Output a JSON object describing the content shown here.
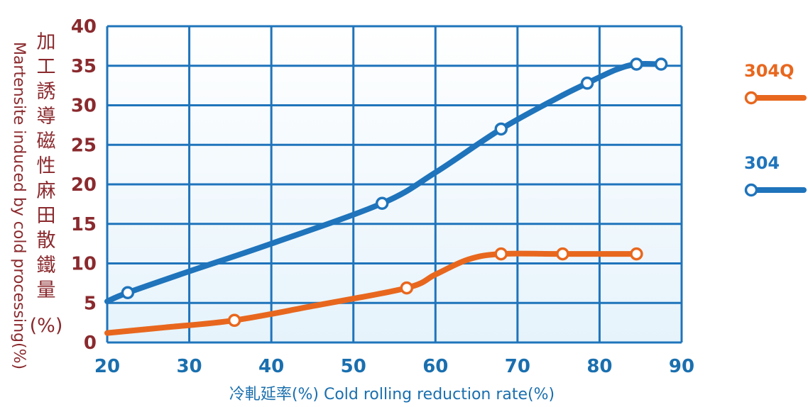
{
  "chart_data": {
    "type": "line",
    "xlabel": "冷軋延率(%) Cold rolling reduction rate(%)",
    "ylabel_cn": "加工誘導磁性麻田散鐵量",
    "ylabel_unit": "(%)",
    "ylabel_en": "Martensite induced by cold processing(%)",
    "xlim": [
      20,
      90
    ],
    "ylim": [
      0,
      40
    ],
    "xticks": [
      "20",
      "30",
      "40",
      "50",
      "60",
      "70",
      "80",
      "90"
    ],
    "yticks": [
      "0",
      "5",
      "10",
      "15",
      "20",
      "25",
      "30",
      "35",
      "40"
    ],
    "grid": true,
    "legend_position": "right",
    "series": [
      {
        "name": "304Q",
        "color": "#e8671e",
        "line": [
          [
            20,
            1.2
          ],
          [
            27,
            1.9
          ],
          [
            35.5,
            2.8
          ],
          [
            45,
            4.6
          ],
          [
            56.5,
            6.9
          ],
          [
            60,
            8.6
          ],
          [
            64,
            10.5
          ],
          [
            68,
            11.2
          ],
          [
            75.5,
            11.2
          ],
          [
            84.5,
            11.2
          ]
        ],
        "markers": [
          [
            35.5,
            2.8
          ],
          [
            56.5,
            6.9
          ],
          [
            68,
            11.2
          ],
          [
            75.5,
            11.2
          ],
          [
            84.5,
            11.2
          ]
        ]
      },
      {
        "name": "304",
        "color": "#1f74bb",
        "line": [
          [
            20,
            5.2
          ],
          [
            22.5,
            6.3
          ],
          [
            30,
            9.0
          ],
          [
            40,
            12.5
          ],
          [
            53.5,
            17.6
          ],
          [
            60,
            21.5
          ],
          [
            68,
            27.0
          ],
          [
            75,
            31.0
          ],
          [
            78.5,
            32.8
          ],
          [
            82,
            34.5
          ],
          [
            84.5,
            35.2
          ],
          [
            87.5,
            35.2
          ]
        ],
        "markers": [
          [
            22.5,
            6.3
          ],
          [
            53.5,
            17.6
          ],
          [
            68,
            27.0
          ],
          [
            78.5,
            32.8
          ],
          [
            84.5,
            35.2
          ],
          [
            87.5,
            35.2
          ]
        ]
      }
    ]
  }
}
